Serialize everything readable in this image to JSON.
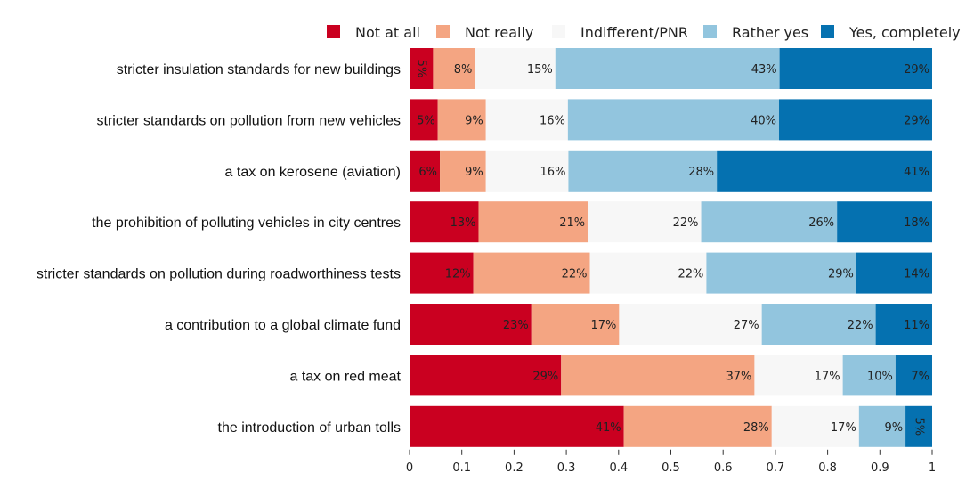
{
  "chart_data": {
    "type": "bar",
    "orientation": "horizontal",
    "stacked": true,
    "categories": [
      "stricter insulation standards for new buildings",
      "stricter standards on pollution from new vehicles",
      "a tax on kerosene (aviation)",
      "the prohibition of polluting vehicles in city centres",
      "stricter standards on pollution during roadworthiness tests",
      "a contribution to a global climate fund",
      "a tax on red meat",
      "the introduction of urban tolls"
    ],
    "series": [
      {
        "name": "Not at all",
        "color": "#ca0020",
        "values": [
          0.045,
          0.054,
          0.058,
          0.132,
          0.122,
          0.233,
          0.29,
          0.41
        ],
        "labels": [
          "5%",
          "5%",
          "6%",
          "13%",
          "12%",
          "23%",
          "29%",
          "41%"
        ]
      },
      {
        "name": "Not really",
        "color": "#f4a582",
        "values": [
          0.08,
          0.092,
          0.088,
          0.209,
          0.223,
          0.168,
          0.37,
          0.283
        ],
        "labels": [
          "8%",
          "9%",
          "9%",
          "21%",
          "22%",
          "17%",
          "37%",
          "28%"
        ]
      },
      {
        "name": "Indifferent/PNR",
        "color": "#f7f7f7",
        "values": [
          0.154,
          0.157,
          0.158,
          0.217,
          0.223,
          0.273,
          0.169,
          0.167
        ],
        "labels": [
          "15%",
          "16%",
          "16%",
          "22%",
          "22%",
          "27%",
          "17%",
          "17%"
        ]
      },
      {
        "name": "Rather yes",
        "color": "#92c5de",
        "values": [
          0.429,
          0.404,
          0.284,
          0.26,
          0.287,
          0.218,
          0.101,
          0.089
        ],
        "labels": [
          "43%",
          "40%",
          "28%",
          "26%",
          "29%",
          "22%",
          "10%",
          "9%"
        ]
      },
      {
        "name": "Yes, completely",
        "color": "#0571b0",
        "values": [
          0.292,
          0.293,
          0.412,
          0.182,
          0.145,
          0.108,
          0.07,
          0.051
        ],
        "labels": [
          "29%",
          "29%",
          "41%",
          "18%",
          "14%",
          "11%",
          "7%",
          "5%"
        ]
      }
    ],
    "xlim": [
      0,
      1
    ],
    "xticks": [
      "0",
      "0.1",
      "0.2",
      "0.3",
      "0.4",
      "0.5",
      "0.6",
      "0.7",
      "0.8",
      "0.9",
      "1"
    ],
    "title": "",
    "xlabel": "",
    "ylabel": "",
    "legend_position": "top",
    "grid": false
  }
}
